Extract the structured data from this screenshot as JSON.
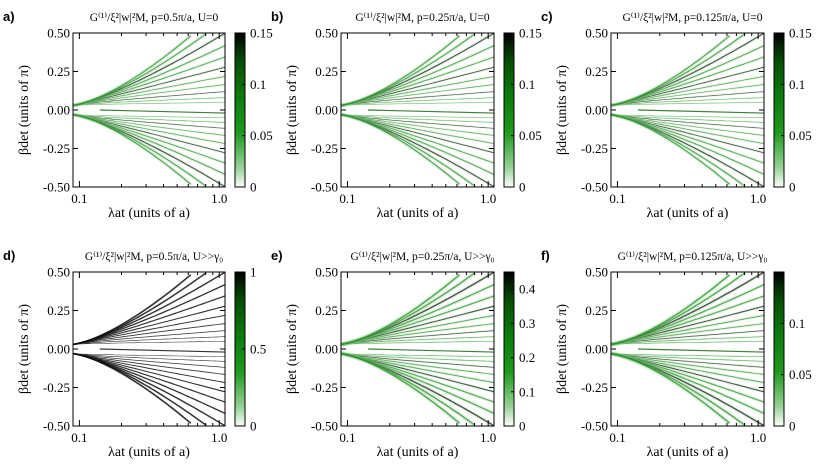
{
  "chart_data": [
    {
      "panel_label": "a)",
      "type": "heatmap",
      "title": "G⁽¹⁾/ξ²|w|²M, p=0.5π/a, U=0",
      "xlabel": "λat (units of a)",
      "ylabel": "βdet (units of π)",
      "xscale": "log",
      "xlim": [
        0.09,
        1.1
      ],
      "ylim": [
        -0.5,
        0.5
      ],
      "xticks": [
        "0.1",
        "1.0"
      ],
      "yticks": [
        "0.50",
        "0.25",
        "0.00",
        "-0.25",
        "-0.50"
      ],
      "colorbar": {
        "min": 0,
        "max": 0.15,
        "ticks": [
          "0.15",
          "0.1",
          "0.05",
          "0"
        ]
      },
      "wave": 0.5
    },
    {
      "panel_label": "b)",
      "type": "heatmap",
      "title": "G⁽¹⁾/ξ²|w|²M, p=0.25π/a, U=0",
      "xlabel": "λat (units of a)",
      "ylabel": "βdet (units of π)",
      "xscale": "log",
      "xlim": [
        0.09,
        1.1
      ],
      "ylim": [
        -0.5,
        0.5
      ],
      "xticks": [
        "0.1",
        "1.0"
      ],
      "yticks": [
        "0.50",
        "0.25",
        "0.00",
        "-0.25",
        "-0.50"
      ],
      "colorbar": {
        "min": 0,
        "max": 0.15,
        "ticks": [
          "0.15",
          "0.1",
          "0.05",
          "0"
        ]
      },
      "wave": 0.25
    },
    {
      "panel_label": "c)",
      "type": "heatmap",
      "title": "G⁽¹⁾/ξ²|w|²M, p=0.125π/a, U=0",
      "xlabel": "λat (units of a)",
      "ylabel": "βdet (units of π)",
      "xscale": "log",
      "xlim": [
        0.09,
        1.1
      ],
      "ylim": [
        -0.5,
        0.5
      ],
      "xticks": [
        "0.1",
        "1.0"
      ],
      "yticks": [
        "0.50",
        "0.25",
        "0.00",
        "-0.25",
        "-0.50"
      ],
      "colorbar": {
        "min": 0,
        "max": 0.15,
        "ticks": [
          "0.15",
          "0.1",
          "0.05",
          "0"
        ]
      },
      "wave": 0.125
    },
    {
      "panel_label": "d)",
      "type": "heatmap",
      "title": "G⁽¹⁾/ξ²|w|²M, p=0.5π/a, U>>γ₀",
      "xlabel": "λat (units of a)",
      "ylabel": "βdet (units of π)",
      "xscale": "log",
      "xlim": [
        0.09,
        1.1
      ],
      "ylim": [
        -0.5,
        0.5
      ],
      "xticks": [
        "0.1",
        "1.0"
      ],
      "yticks": [
        "0.50",
        "0.25",
        "0.00",
        "-0.25",
        "-0.50"
      ],
      "colorbar": {
        "min": 0,
        "max": 1,
        "ticks": [
          "1",
          "0.5",
          "0"
        ]
      },
      "wave": 0.5
    },
    {
      "panel_label": "e)",
      "type": "heatmap",
      "title": "G⁽¹⁾/ξ²|w|²M, p=0.25π/a, U>>γ₀",
      "xlabel": "λat (units of a)",
      "ylabel": "βdet (units of π)",
      "xscale": "log",
      "xlim": [
        0.09,
        1.1
      ],
      "ylim": [
        -0.5,
        0.5
      ],
      "xticks": [
        "0.1",
        "1.0"
      ],
      "yticks": [
        "0.50",
        "0.25",
        "0.00",
        "-0.25",
        "-0.50"
      ],
      "colorbar": {
        "min": 0,
        "max": 0.45,
        "ticks": [
          "0.4",
          "0.3",
          "0.2",
          "0.1",
          "0"
        ]
      },
      "wave": 0.25
    },
    {
      "panel_label": "f)",
      "type": "heatmap",
      "title": "G⁽¹⁾/ξ²|w|²M, p=0.125π/a, U>>γ₀",
      "xlabel": "λat (units of a)",
      "ylabel": "βdet (units of π)",
      "xscale": "log",
      "xlim": [
        0.09,
        1.1
      ],
      "ylim": [
        -0.5,
        0.5
      ],
      "xticks": [
        "0.1",
        "1.0"
      ],
      "yticks": [
        "0.50",
        "0.25",
        "0.00",
        "-0.25",
        "-0.50"
      ],
      "colorbar": {
        "min": 0,
        "max": 0.15,
        "ticks": [
          "0.1",
          "0.05",
          "0"
        ]
      },
      "wave": 0.125
    }
  ]
}
